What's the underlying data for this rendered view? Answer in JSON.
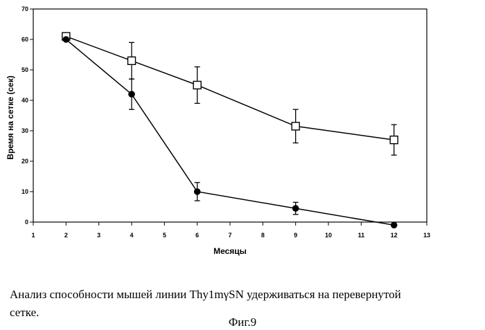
{
  "chart_data": {
    "type": "line",
    "title": "",
    "xlabel": "Месяцы",
    "ylabel": "Время на сетке (сек)",
    "xlim": [
      1,
      13
    ],
    "ylim": [
      0,
      70
    ],
    "xticks": [
      1,
      2,
      3,
      4,
      5,
      6,
      7,
      8,
      9,
      10,
      11,
      12,
      13
    ],
    "yticks": [
      0,
      10,
      20,
      30,
      40,
      50,
      60,
      70
    ],
    "grid": false,
    "series": [
      {
        "name": "squares",
        "marker": "square-open",
        "x": [
          2,
          4,
          6,
          9,
          12
        ],
        "y": [
          61,
          53,
          45,
          31.5,
          27
        ],
        "err": [
          0,
          6,
          6,
          5.5,
          5
        ]
      },
      {
        "name": "circles",
        "marker": "circle-filled",
        "x": [
          2,
          4,
          6,
          9,
          12
        ],
        "y": [
          60,
          42,
          10,
          4.5,
          -1
        ],
        "err": [
          0,
          5,
          3,
          2,
          0
        ]
      }
    ]
  },
  "caption": {
    "line1": "Анализ способности мышей линии Thy1mγSN удерживаться на перевернутой",
    "line2": "сетке.",
    "figure": "Фиг.9"
  }
}
